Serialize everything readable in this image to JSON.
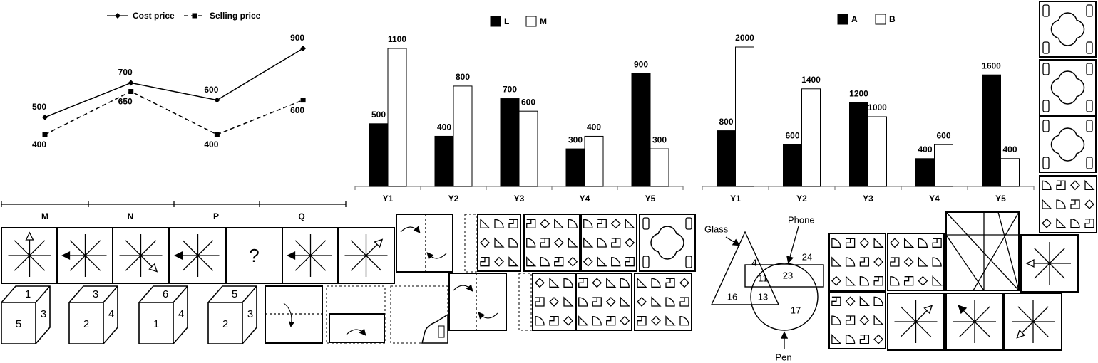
{
  "chart_data": [
    {
      "type": "line",
      "categories": [
        null,
        null,
        null,
        null
      ],
      "series": [
        {
          "name": "Cost price",
          "color": "#000000",
          "line_style": "solid",
          "marker": "diamond",
          "values": [
            500,
            700,
            600,
            900
          ]
        },
        {
          "name": "Selling price",
          "color": "#000000",
          "line_style": "dashed",
          "marker": "square",
          "values": [
            400,
            650,
            400,
            600
          ]
        }
      ]
    },
    {
      "type": "bar",
      "categories": [
        "Y1",
        "Y2",
        "Y3",
        "Y4",
        "Y5"
      ],
      "series": [
        {
          "name": "L",
          "color": "#000000",
          "values": [
            500,
            400,
            700,
            300,
            900
          ]
        },
        {
          "name": "M",
          "color": "#ffffff",
          "values": [
            1100,
            800,
            600,
            400,
            300
          ]
        }
      ]
    },
    {
      "type": "bar",
      "categories": [
        "Y1",
        "Y2",
        "Y3",
        "Y4",
        "Y5"
      ],
      "series": [
        {
          "name": "A",
          "color": "#000000",
          "values": [
            800,
            600,
            1200,
            400,
            1600
          ]
        },
        {
          "name": "B",
          "color": "#ffffff",
          "values": [
            2000,
            1400,
            1000,
            600,
            400
          ]
        }
      ]
    }
  ],
  "puzzle": {
    "headers": [
      "M",
      "N",
      "P",
      "Q"
    ],
    "question": "?",
    "cubes": [
      {
        "top": 1,
        "front": 5,
        "side": 3
      },
      {
        "top": 3,
        "front": 2,
        "side": 4
      },
      {
        "top": 6,
        "front": 1,
        "side": 4
      },
      {
        "top": 5,
        "front": 2,
        "side": 3
      }
    ]
  },
  "venn": {
    "sets": [
      "Glass",
      "Phone",
      "Pen"
    ],
    "regions": [
      4,
      11,
      23,
      24,
      16,
      13,
      17
    ]
  }
}
